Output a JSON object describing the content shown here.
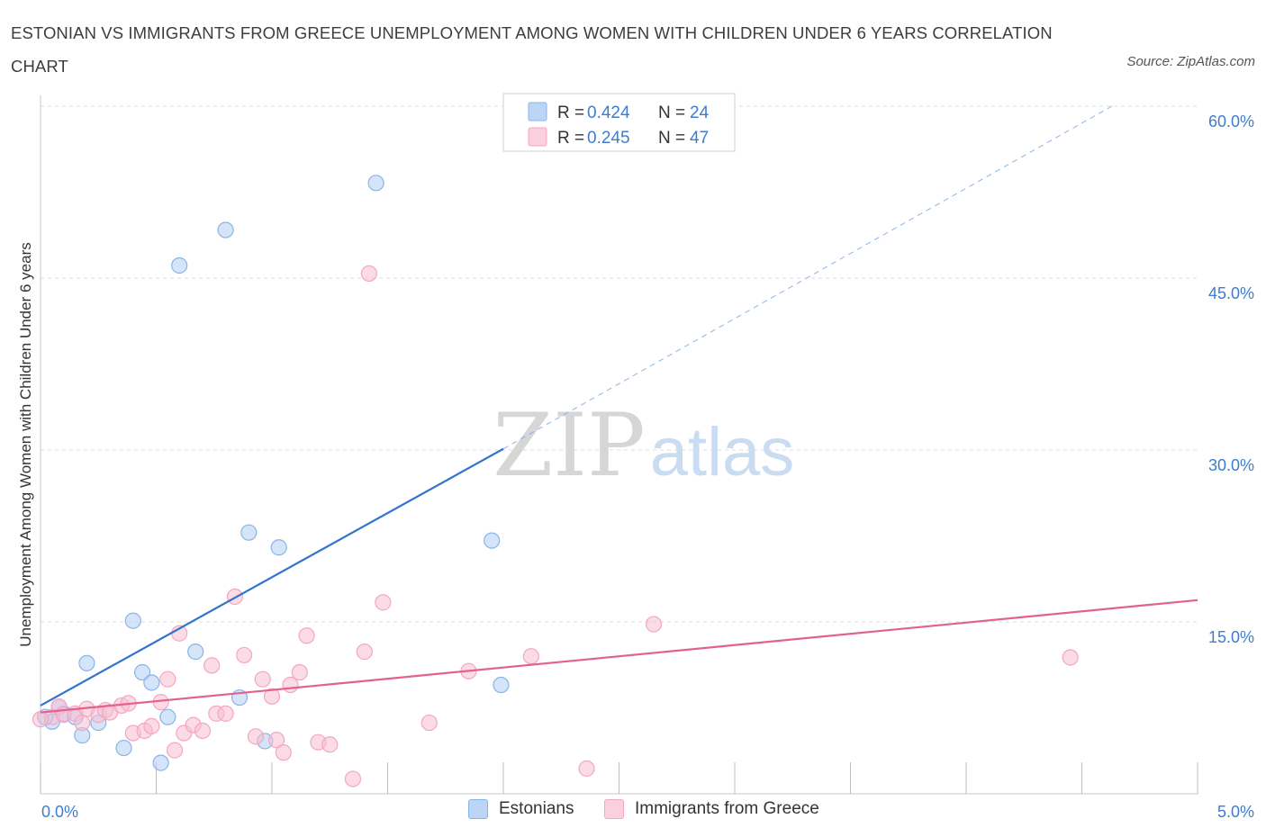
{
  "title": "ESTONIAN VS IMMIGRANTS FROM GREECE UNEMPLOYMENT AMONG WOMEN WITH CHILDREN UNDER 6 YEARS CORRELATION CHART",
  "source": "Source: ZipAtlas.com",
  "watermark": {
    "zip": "ZIP",
    "atlas": "atlas"
  },
  "chart_data": {
    "type": "scatter",
    "title": "ESTONIAN VS IMMIGRANTS FROM GREECE UNEMPLOYMENT AMONG WOMEN WITH CHILDREN UNDER 6 YEARS CORRELATION CHART",
    "xlabel": "",
    "ylabel": "Unemployment Among Women with Children Under 6 years",
    "xlim": [
      0,
      5
    ],
    "ylim": [
      0,
      60
    ],
    "x_tick_labels": [
      "0.0%",
      "5.0%"
    ],
    "y_ticks": [
      15,
      30,
      45,
      60
    ],
    "y_tick_labels": [
      "15.0%",
      "30.0%",
      "45.0%",
      "60.0%"
    ],
    "grid": true,
    "legend_stats": [
      {
        "r_label": "R = ",
        "r_value": "0.424",
        "n_label": "N = ",
        "n_value": "24"
      },
      {
        "r_label": "R = ",
        "r_value": "0.245",
        "n_label": "N = ",
        "n_value": "47"
      }
    ],
    "series": [
      {
        "name": "Estonians",
        "color": "#8ab4e8",
        "line_color": "#3272d0",
        "trend": {
          "x0": 0.0,
          "y0": 7.7,
          "x1": 2.0,
          "y1": 30.1,
          "dash_to_x": 4.63,
          "dash_to_y": 60.0
        },
        "points": [
          [
            0.05,
            6.3
          ],
          [
            0.1,
            7.0
          ],
          [
            0.15,
            6.7
          ],
          [
            0.18,
            5.1
          ],
          [
            0.2,
            11.4
          ],
          [
            0.25,
            6.2
          ],
          [
            0.36,
            4.0
          ],
          [
            0.4,
            15.1
          ],
          [
            0.44,
            10.6
          ],
          [
            0.48,
            9.7
          ],
          [
            0.52,
            2.7
          ],
          [
            0.55,
            6.7
          ],
          [
            0.6,
            46.1
          ],
          [
            0.67,
            12.4
          ],
          [
            0.8,
            49.2
          ],
          [
            0.86,
            8.4
          ],
          [
            0.9,
            22.8
          ],
          [
            0.97,
            4.6
          ],
          [
            1.03,
            21.5
          ],
          [
            1.45,
            53.3
          ],
          [
            1.95,
            22.1
          ],
          [
            1.99,
            9.5
          ],
          [
            0.08,
            7.6
          ],
          [
            0.02,
            6.7
          ]
        ]
      },
      {
        "name": "Immigrants from Greece",
        "color": "#f4a7bf",
        "line_color": "#e3618e",
        "trend": {
          "x0": 0.0,
          "y0": 7.1,
          "x1": 5.0,
          "y1": 16.9
        },
        "points": [
          [
            0.05,
            6.7
          ],
          [
            0.08,
            7.6
          ],
          [
            0.1,
            6.9
          ],
          [
            0.15,
            7.0
          ],
          [
            0.18,
            6.2
          ],
          [
            0.2,
            7.4
          ],
          [
            0.25,
            6.9
          ],
          [
            0.28,
            7.3
          ],
          [
            0.3,
            7.1
          ],
          [
            0.35,
            7.7
          ],
          [
            0.38,
            7.9
          ],
          [
            0.4,
            5.3
          ],
          [
            0.45,
            5.5
          ],
          [
            0.48,
            5.9
          ],
          [
            0.52,
            8.0
          ],
          [
            0.55,
            10.0
          ],
          [
            0.58,
            3.8
          ],
          [
            0.6,
            14.0
          ],
          [
            0.62,
            5.3
          ],
          [
            0.66,
            6.0
          ],
          [
            0.7,
            5.5
          ],
          [
            0.74,
            11.2
          ],
          [
            0.76,
            7.0
          ],
          [
            0.8,
            7.0
          ],
          [
            0.84,
            17.2
          ],
          [
            0.88,
            12.1
          ],
          [
            0.93,
            5.0
          ],
          [
            0.96,
            10.0
          ],
          [
            1.0,
            8.5
          ],
          [
            1.02,
            4.7
          ],
          [
            1.05,
            3.6
          ],
          [
            1.08,
            9.5
          ],
          [
            1.12,
            10.6
          ],
          [
            1.15,
            13.8
          ],
          [
            1.2,
            4.5
          ],
          [
            1.25,
            4.3
          ],
          [
            1.35,
            1.3
          ],
          [
            1.4,
            12.4
          ],
          [
            1.42,
            45.4
          ],
          [
            1.48,
            16.7
          ],
          [
            1.68,
            6.2
          ],
          [
            1.85,
            10.7
          ],
          [
            2.12,
            12.0
          ],
          [
            2.36,
            2.2
          ],
          [
            2.65,
            14.8
          ],
          [
            4.45,
            11.9
          ],
          [
            0.0,
            6.5
          ]
        ]
      }
    ]
  }
}
